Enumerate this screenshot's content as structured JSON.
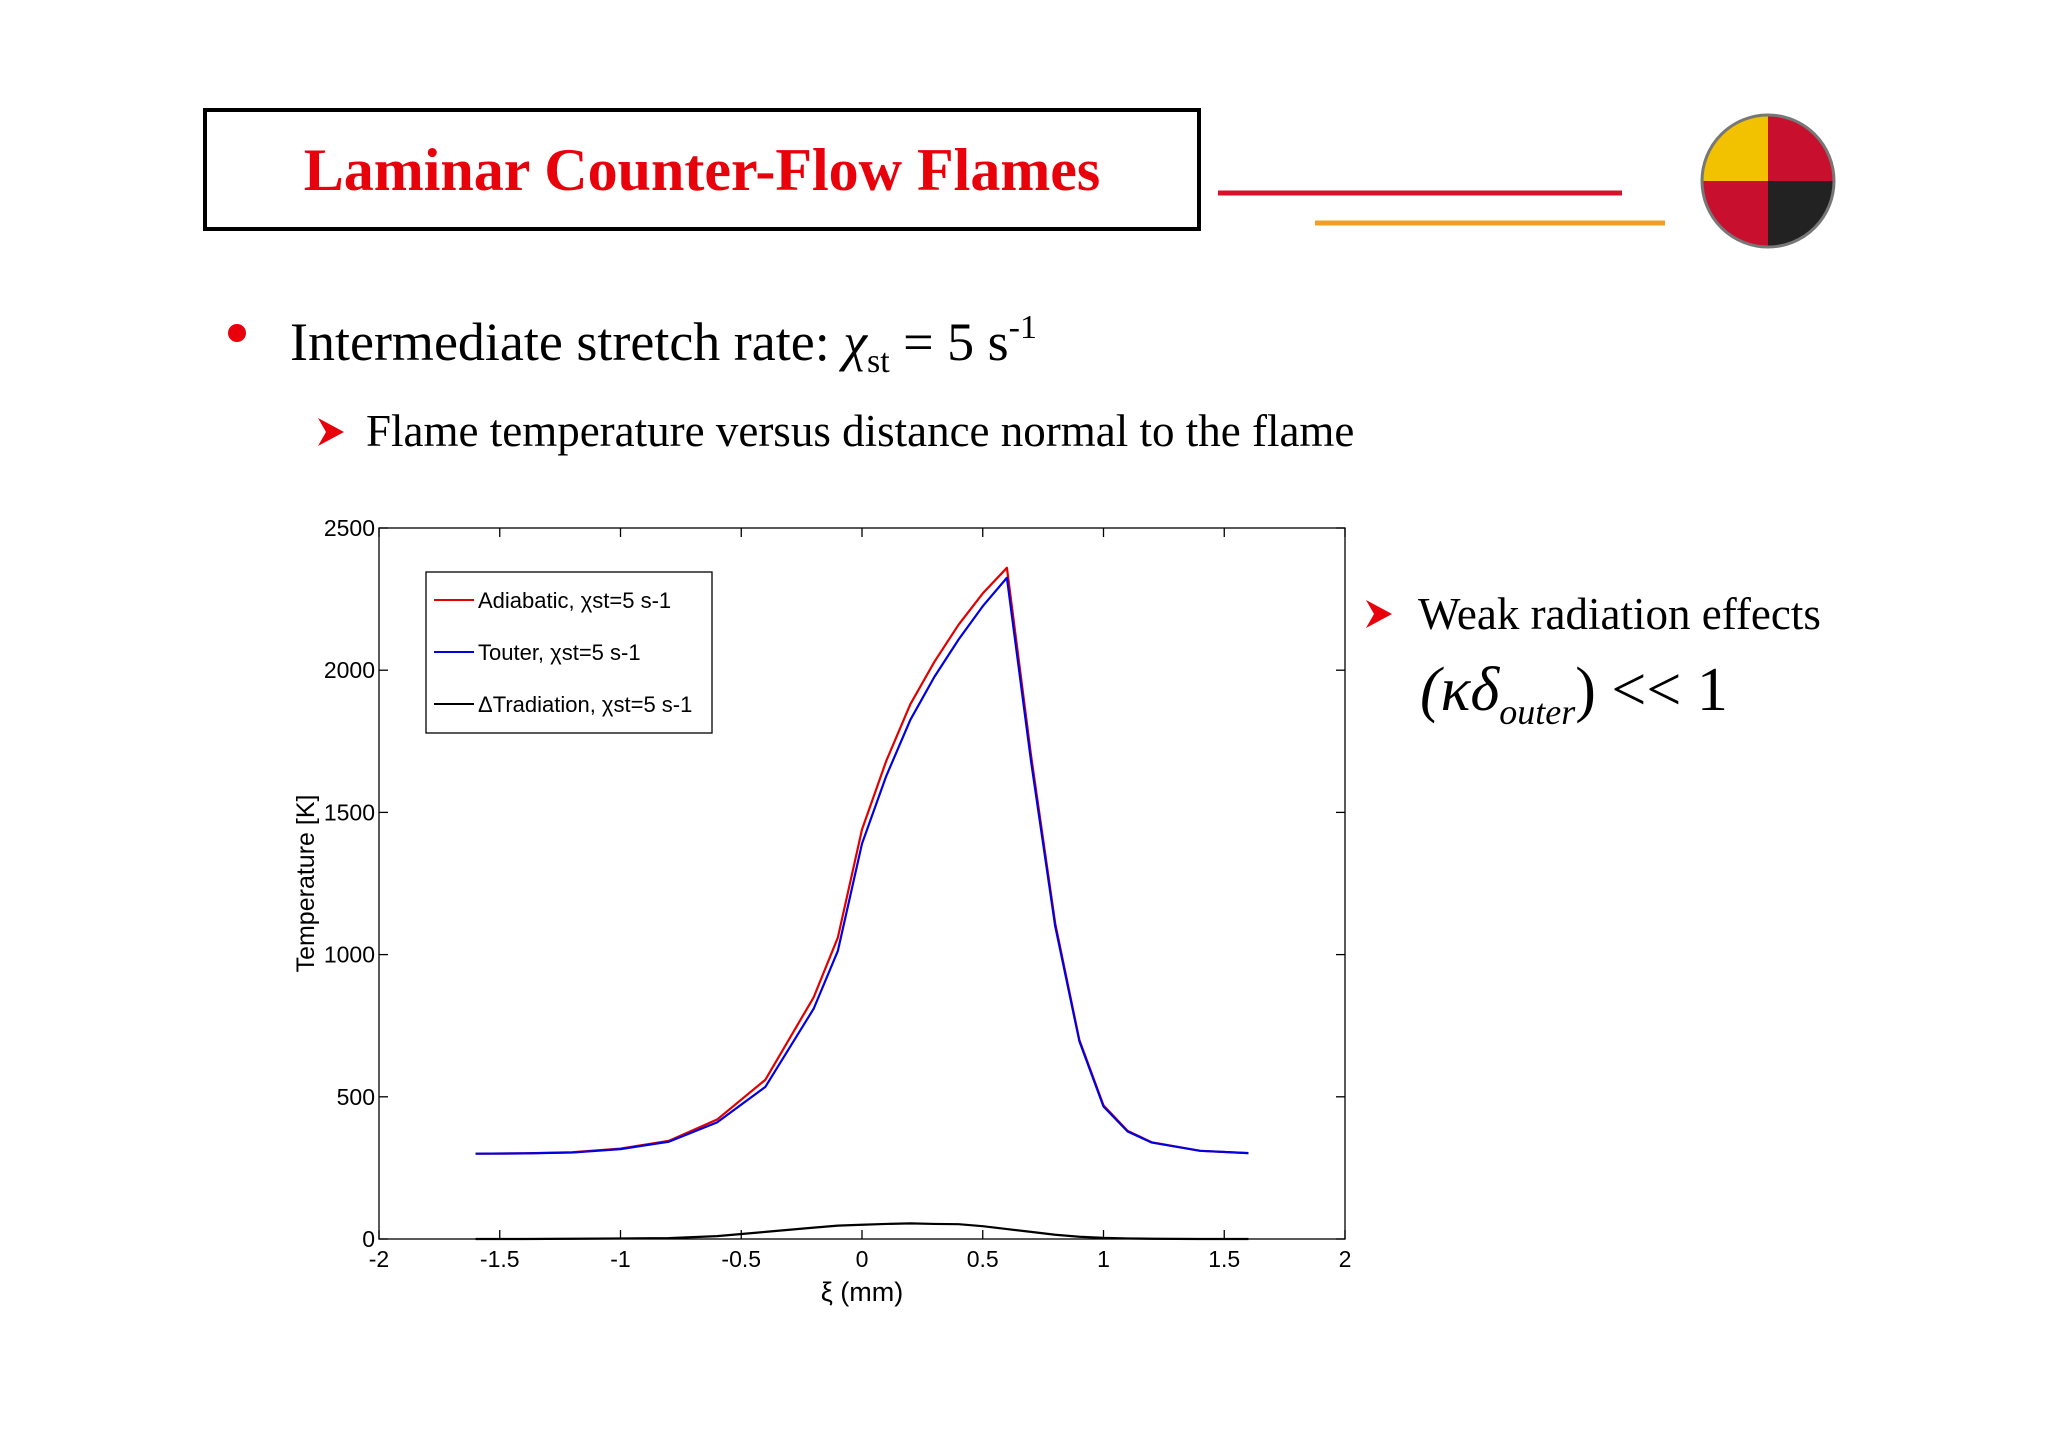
{
  "header": {
    "title": "Laminar Counter-Flow Flames"
  },
  "bullet": {
    "text": "Intermediate stretch rate: ",
    "symbol": "χ",
    "symbol_sub": "st",
    "rest": " = 5 s",
    "rest_sup": "-1"
  },
  "sub_bullet": "Flame temperature versus distance normal to the flame",
  "side_note": {
    "text": "Weak radiation effects",
    "formula": {
      "open": "(κδ",
      "sub": "outer",
      "close": ") << 1"
    }
  },
  "chart_data": {
    "type": "line",
    "xlabel": "ξ (mm)",
    "ylabel": "Temperature [K]",
    "x": [
      -1.6,
      -1.4,
      -1.2,
      -1.0,
      -0.8,
      -0.6,
      -0.4,
      -0.2,
      -0.1,
      0,
      0.1,
      0.2,
      0.3,
      0.4,
      0.5,
      0.6,
      0.7,
      0.8,
      0.9,
      1.0,
      1.1,
      1.2,
      1.4,
      1.6
    ],
    "series": [
      {
        "name": "Adiabatic, χst=5 s-1",
        "color": "#e00000",
        "values": [
          300,
          301,
          305,
          318,
          345,
          420,
          560,
          850,
          1060,
          1440,
          1680,
          1880,
          2030,
          2160,
          2270,
          2360,
          1700,
          1110,
          700,
          470,
          380,
          340,
          310,
          302
        ]
      },
      {
        "name": "Touter, χst=5 s-1",
        "color": "#0000e0",
        "values": [
          300,
          301,
          304,
          316,
          342,
          410,
          535,
          810,
          1013,
          1390,
          1627,
          1825,
          1977,
          2108,
          2225,
          2325,
          1680,
          1100,
          696,
          466,
          378,
          339,
          310,
          302
        ]
      },
      {
        "name": "ΔTradiation, χst=5 s-1",
        "color": "#000000",
        "values": [
          0,
          0,
          1,
          2,
          3,
          10,
          25,
          40,
          47,
          50,
          53,
          55,
          53,
          52,
          45,
          35,
          25,
          15,
          8,
          4,
          2,
          1,
          0,
          0
        ]
      }
    ],
    "xlim": [
      -2,
      2
    ],
    "ylim": [
      0,
      2500
    ],
    "xticks": [
      -2,
      -1.5,
      -1,
      -0.5,
      0,
      0.5,
      1,
      1.5,
      2
    ],
    "yticks": [
      0,
      500,
      1000,
      1500,
      2000,
      2500
    ],
    "legend": "upper left"
  }
}
